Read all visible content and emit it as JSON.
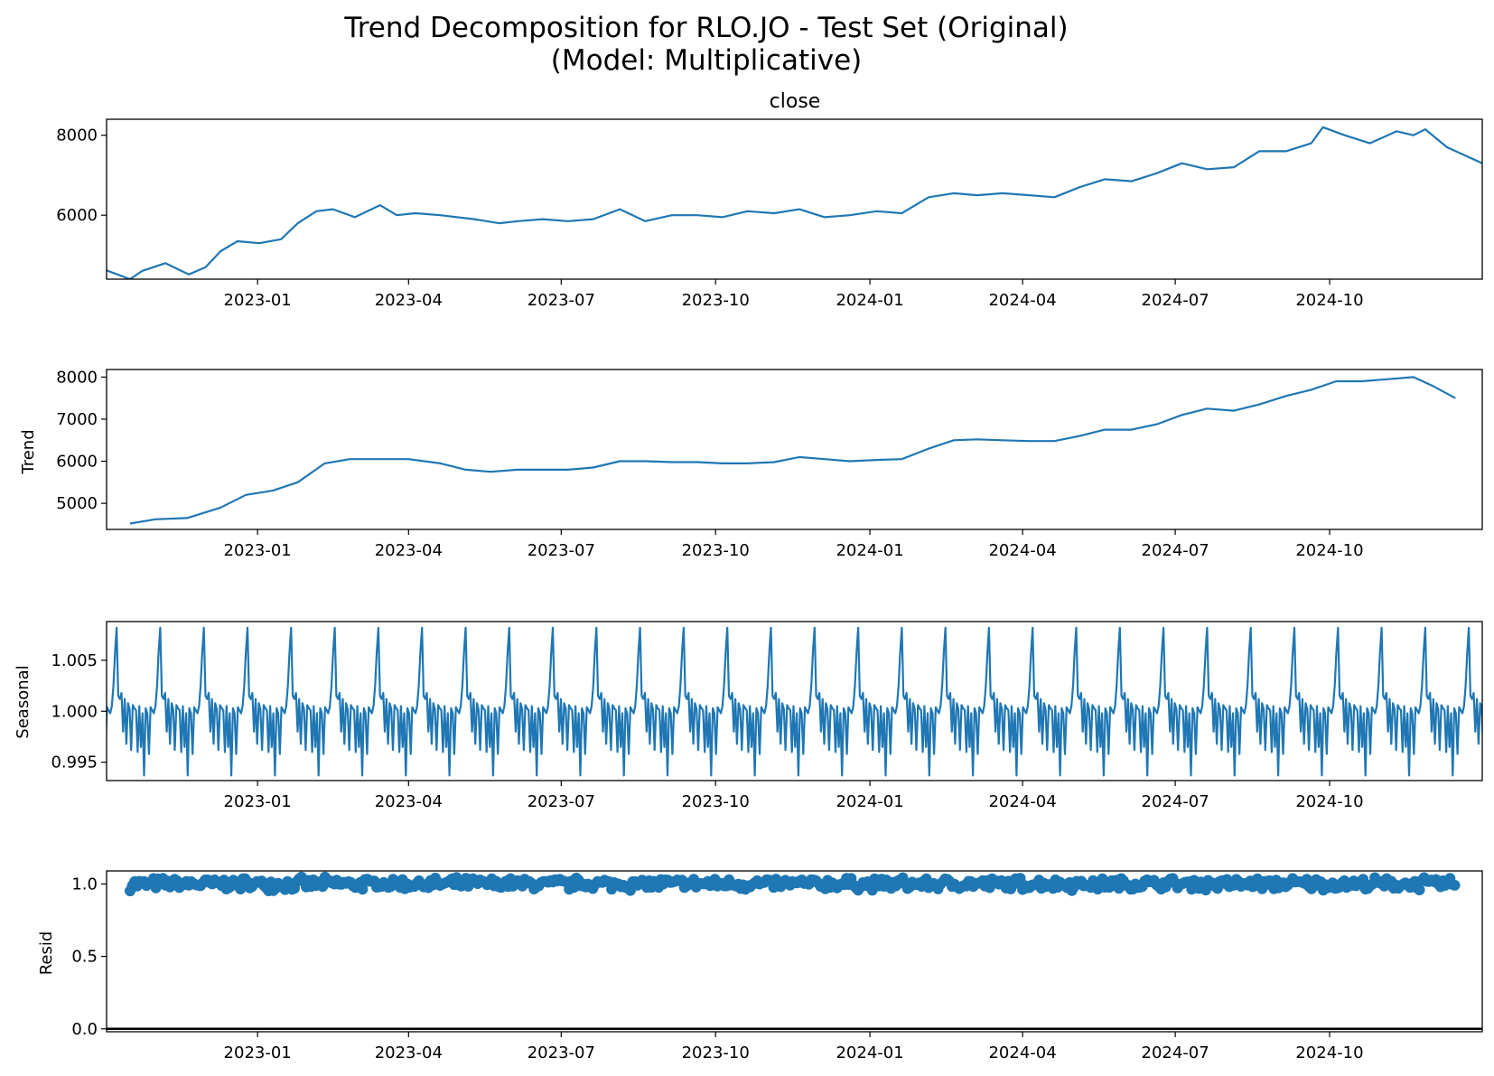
{
  "figure": {
    "title_line1": "Trend Decomposition for RLO.JO - Test Set (Original)",
    "title_line2": "(Model: Multiplicative)"
  },
  "colors": {
    "series": "#1f77b4",
    "axes": "#000000",
    "background": "#ffffff"
  },
  "chart_data": [
    {
      "type": "line",
      "title": "close",
      "ylabel": "",
      "x_range": [
        "2022-10-03",
        "2024-12-31"
      ],
      "ylim": [
        4400,
        8400
      ],
      "yticks": [
        6000,
        8000
      ],
      "xticks": [
        "2023-01",
        "2023-04",
        "2023-07",
        "2023-10",
        "2024-01",
        "2024-04",
        "2024-07",
        "2024-10"
      ],
      "series": [
        {
          "x": [
            "2022-10-03",
            "2022-10-17",
            "2022-10-24",
            "2022-11-07",
            "2022-11-21",
            "2022-12-01",
            "2022-12-10",
            "2022-12-20",
            "2023-01-02",
            "2023-01-15",
            "2023-01-25",
            "2023-02-05",
            "2023-02-15",
            "2023-02-28",
            "2023-03-15",
            "2023-03-25",
            "2023-04-05",
            "2023-04-20",
            "2023-05-10",
            "2023-05-25",
            "2023-06-05",
            "2023-06-20",
            "2023-07-05",
            "2023-07-20",
            "2023-08-05",
            "2023-08-20",
            "2023-09-05",
            "2023-09-20",
            "2023-10-05",
            "2023-10-20",
            "2023-11-05",
            "2023-11-20",
            "2023-12-05",
            "2023-12-20",
            "2024-01-05",
            "2024-01-20",
            "2024-02-05",
            "2024-02-20",
            "2024-03-05",
            "2024-03-20",
            "2024-04-05",
            "2024-04-20",
            "2024-05-05",
            "2024-05-20",
            "2024-06-05",
            "2024-06-20",
            "2024-07-05",
            "2024-07-20",
            "2024-08-05",
            "2024-08-20",
            "2024-09-05",
            "2024-09-20",
            "2024-09-27",
            "2024-10-10",
            "2024-10-25",
            "2024-11-10",
            "2024-11-20",
            "2024-11-27",
            "2024-12-10",
            "2024-12-31"
          ],
          "values": [
            4620,
            4400,
            4600,
            4800,
            4520,
            4700,
            5100,
            5350,
            5300,
            5400,
            5800,
            6100,
            6150,
            5950,
            6250,
            6000,
            6050,
            6000,
            5900,
            5800,
            5850,
            5900,
            5850,
            5900,
            6150,
            5850,
            6000,
            6000,
            5950,
            6100,
            6050,
            6150,
            5950,
            6000,
            6100,
            6050,
            6450,
            6550,
            6500,
            6550,
            6500,
            6450,
            6700,
            6900,
            6850,
            7050,
            7300,
            7150,
            7200,
            7600,
            7600,
            7800,
            8200,
            8000,
            7800,
            8100,
            8000,
            8150,
            7700,
            7300
          ]
        }
      ]
    },
    {
      "type": "line",
      "title": "",
      "ylabel": "Trend",
      "x_range": [
        "2022-10-03",
        "2024-12-31"
      ],
      "ylim": [
        4380,
        8180
      ],
      "yticks": [
        5000,
        6000,
        7000,
        8000
      ],
      "xticks": [
        "2023-01",
        "2023-04",
        "2023-07",
        "2023-10",
        "2024-01",
        "2024-04",
        "2024-07",
        "2024-10"
      ],
      "series": [
        {
          "x": [
            "2022-10-17",
            "2022-11-01",
            "2022-11-20",
            "2022-12-10",
            "2022-12-25",
            "2023-01-10",
            "2023-01-25",
            "2023-02-10",
            "2023-02-25",
            "2023-03-15",
            "2023-04-01",
            "2023-04-20",
            "2023-05-05",
            "2023-05-20",
            "2023-06-05",
            "2023-06-20",
            "2023-07-05",
            "2023-07-20",
            "2023-08-05",
            "2023-08-20",
            "2023-09-05",
            "2023-09-20",
            "2023-10-05",
            "2023-10-20",
            "2023-11-05",
            "2023-11-20",
            "2023-12-05",
            "2023-12-20",
            "2024-01-05",
            "2024-01-20",
            "2024-02-05",
            "2024-02-20",
            "2024-03-05",
            "2024-03-20",
            "2024-04-05",
            "2024-04-20",
            "2024-05-05",
            "2024-05-20",
            "2024-06-05",
            "2024-06-20",
            "2024-07-05",
            "2024-07-20",
            "2024-08-05",
            "2024-08-20",
            "2024-09-05",
            "2024-09-20",
            "2024-10-05",
            "2024-10-20",
            "2024-11-05",
            "2024-11-20",
            "2024-12-01",
            "2024-12-15"
          ],
          "values": [
            4520,
            4620,
            4650,
            4900,
            5200,
            5300,
            5500,
            5950,
            6050,
            6050,
            6050,
            5950,
            5800,
            5750,
            5800,
            5800,
            5800,
            5850,
            6000,
            6000,
            5980,
            5980,
            5950,
            5950,
            5980,
            6100,
            6050,
            6000,
            6030,
            6050,
            6300,
            6500,
            6520,
            6500,
            6480,
            6480,
            6600,
            6750,
            6750,
            6880,
            7100,
            7250,
            7200,
            7350,
            7550,
            7700,
            7900,
            7900,
            7950,
            8000,
            7800,
            7500
          ]
        }
      ]
    },
    {
      "type": "line",
      "title": "",
      "ylabel": "Seasonal",
      "x_range": [
        "2022-10-03",
        "2024-12-31"
      ],
      "ylim": [
        0.9932,
        1.0088
      ],
      "yticks": [
        0.995,
        1.0,
        1.005
      ],
      "ytick_labels": [
        "0.995",
        "1.000",
        "1.005"
      ],
      "xticks": [
        "2023-01",
        "2023-04",
        "2023-07",
        "2023-10",
        "2024-01",
        "2024-04",
        "2024-07",
        "2024-10"
      ],
      "period_days": 26,
      "first_peak": "2022-10-09",
      "series": [
        {
          "pattern_values": [
            1.0082,
            1.0015,
            1.0012,
            1.0018,
            0.998,
            1.0012,
            0.9968,
            1.0008,
            1.0002,
            0.9962,
            1.0006,
            1.0003,
            1.0001,
            0.996,
            1.0005,
            0.9965,
            0.9998,
            0.9937,
            1.0003,
            0.9998,
            0.9958,
            1.0004,
            1.0001,
            0.9998,
            1.0005,
            1.0025,
            1.0058,
            1.0082
          ]
        }
      ]
    },
    {
      "type": "scatter",
      "title": "",
      "ylabel": "Resid",
      "x_range": [
        "2022-10-03",
        "2024-12-31"
      ],
      "ylim": [
        -0.02,
        1.09
      ],
      "yticks": [
        0.0,
        0.5,
        1.0
      ],
      "ytick_labels": [
        "0.0",
        "0.5",
        "1.0"
      ],
      "xticks": [
        "2023-01",
        "2023-04",
        "2023-07",
        "2023-10",
        "2024-01",
        "2024-04",
        "2024-07",
        "2024-10"
      ],
      "reference_line": 0,
      "series": [
        {
          "x_start": "2022-10-17",
          "x_end": "2024-12-15",
          "center": 1.0,
          "spread": 0.05
        }
      ]
    }
  ]
}
